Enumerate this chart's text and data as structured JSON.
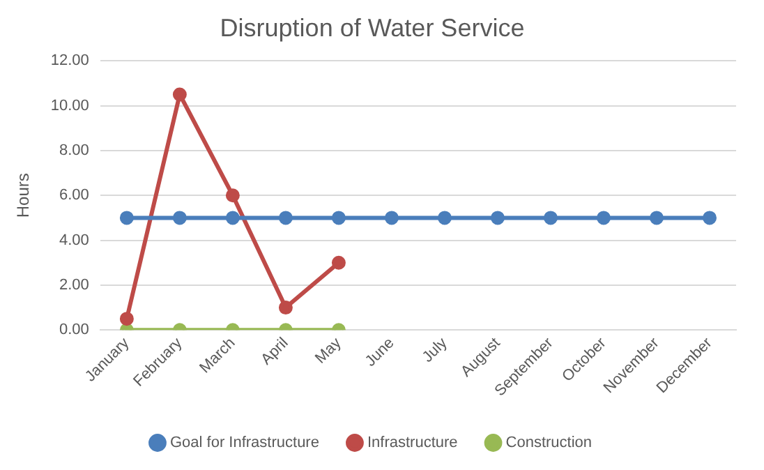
{
  "chart_data": {
    "type": "line",
    "title": "Disruption of Water Service",
    "ylabel": "Hours",
    "categories": [
      "January",
      "February",
      "March",
      "April",
      "May",
      "June",
      "July",
      "August",
      "September",
      "October",
      "November",
      "December"
    ],
    "series": [
      {
        "name": "Goal for Infrastructure",
        "color": "#4a7ebb",
        "values": [
          5,
          5,
          5,
          5,
          5,
          5,
          5,
          5,
          5,
          5,
          5,
          5
        ]
      },
      {
        "name": "Infrastructure",
        "color": "#be4b48",
        "values": [
          0.5,
          10.5,
          6,
          1,
          3,
          null,
          null,
          null,
          null,
          null,
          null,
          null
        ]
      },
      {
        "name": "Construction",
        "color": "#98b954",
        "values": [
          0,
          0,
          0,
          0,
          0,
          null,
          null,
          null,
          null,
          null,
          null,
          null
        ]
      }
    ],
    "ylim": [
      0,
      12
    ],
    "yticks": [
      {
        "value": 0,
        "label": "0.00"
      },
      {
        "value": 2,
        "label": "2.00"
      },
      {
        "value": 4,
        "label": "4.00"
      },
      {
        "value": 6,
        "label": "6.00"
      },
      {
        "value": 8,
        "label": "8.00"
      },
      {
        "value": 10,
        "label": "10.00"
      },
      {
        "value": 12,
        "label": "12.00"
      }
    ],
    "grid": "y",
    "legend": "bottom",
    "marker": "circle",
    "line_style": "solid"
  }
}
